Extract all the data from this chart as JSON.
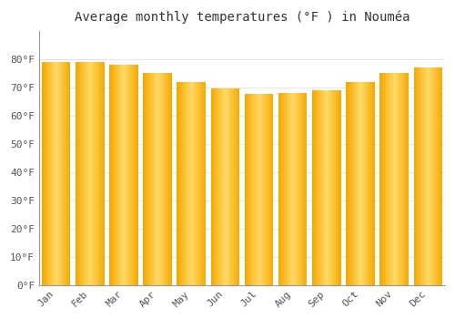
{
  "title": "Average monthly temperatures (°F ) in Nouméa",
  "months": [
    "Jan",
    "Feb",
    "Mar",
    "Apr",
    "May",
    "Jun",
    "Jul",
    "Aug",
    "Sep",
    "Oct",
    "Nov",
    "Dec"
  ],
  "values": [
    79,
    79,
    78,
    75,
    72,
    69.5,
    67.5,
    68,
    69,
    72,
    75,
    77
  ],
  "bar_color_dark": "#F5A800",
  "bar_color_light": "#FFD966",
  "ylim": [
    0,
    90
  ],
  "yticks": [
    0,
    10,
    20,
    30,
    40,
    50,
    60,
    70,
    80
  ],
  "ytick_labels": [
    "0°F",
    "10°F",
    "20°F",
    "30°F",
    "40°F",
    "50°F",
    "60°F",
    "70°F",
    "80°F"
  ],
  "background_color": "#FFFFFF",
  "grid_color": "#E8E8E8",
  "title_fontsize": 10,
  "tick_fontsize": 8,
  "bar_width": 0.85
}
